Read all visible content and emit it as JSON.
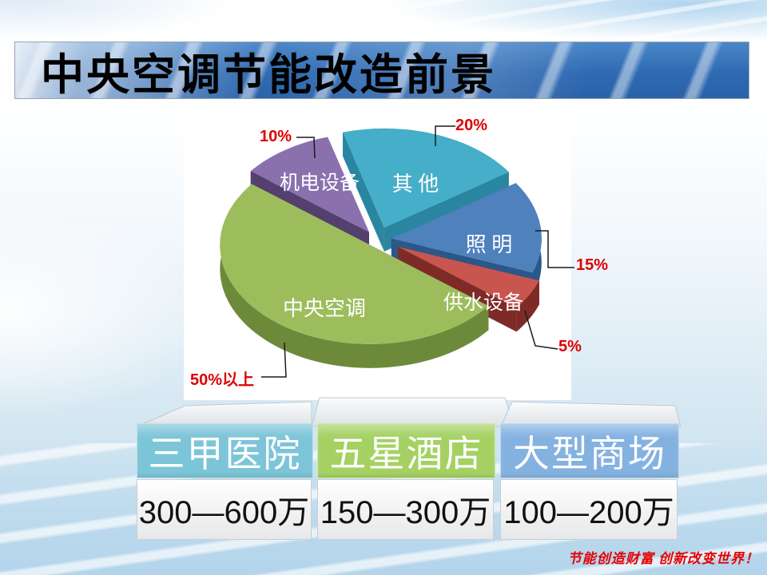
{
  "title": "中央空调节能改造前景",
  "chart_data": {
    "type": "pie",
    "style": "3d-exploded",
    "legend_position": "none",
    "slices": [
      {
        "label": "其 他",
        "pct_label": "20%",
        "value": 20,
        "color": "#45aec8",
        "side": "#2a86a0"
      },
      {
        "label": "照 明",
        "pct_label": "15%",
        "value": 15,
        "color": "#4f81bd",
        "side": "#2c5789"
      },
      {
        "label": "供水设备",
        "pct_label": "5%",
        "value": 5,
        "color": "#c9554f",
        "side": "#7e2b28"
      },
      {
        "label": "中央空调",
        "pct_label": "50%以上",
        "value": 50,
        "color": "#9dbd5d",
        "side": "#6d8a3a"
      },
      {
        "label": "机电设备",
        "pct_label": "10%",
        "value": 10,
        "color": "#8a71ad",
        "side": "#53406f"
      }
    ]
  },
  "table": {
    "columns": [
      {
        "header": "三甲医院",
        "value": "300—600万",
        "header_color": "#7cc5d8"
      },
      {
        "header": "五星酒店",
        "value": "150—300万",
        "header_color": "#a5d163"
      },
      {
        "header": "大型商场",
        "value": "100—200万",
        "header_color": "#84b2e0"
      }
    ]
  },
  "footer": {
    "slogan": "节能创造财富 创新改变世界！"
  },
  "colors": {
    "callout_text": "#dd0000",
    "callout_line": "#1a1a1a",
    "title_text": "#000000",
    "banner_blue": "#2f6ab2"
  }
}
